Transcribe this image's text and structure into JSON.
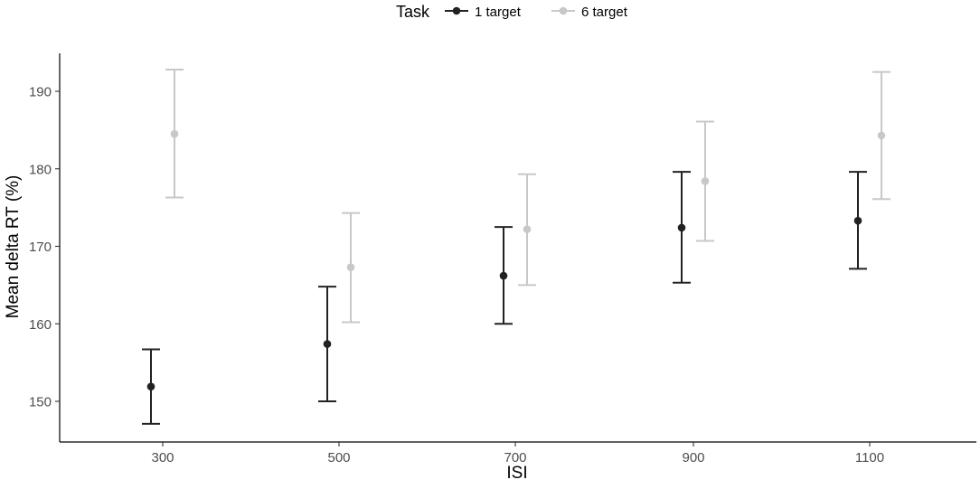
{
  "chart_data": {
    "type": "scatter",
    "subtype": "point-errorbar",
    "title": "",
    "xlabel": "ISI",
    "ylabel": "Mean delta RT (%)",
    "categories": [
      "300",
      "500",
      "700",
      "900",
      "1100"
    ],
    "y_ticks": [
      "150",
      "160",
      "170",
      "180",
      "190"
    ],
    "ylim": [
      144.5,
      195
    ],
    "grid": false,
    "legend": {
      "title": "Task",
      "position": "top-center"
    },
    "series": [
      {
        "name": "1 target",
        "color": "#222222",
        "values": [
          151.9,
          157.4,
          166.2,
          172.4,
          173.3
        ],
        "lower": [
          147.1,
          150.0,
          160.0,
          165.3,
          167.1
        ],
        "upper": [
          156.7,
          164.8,
          172.5,
          179.6,
          179.6
        ]
      },
      {
        "name": "6 target",
        "color": "#c8c8c8",
        "values": [
          184.5,
          167.3,
          172.2,
          178.4,
          184.3
        ],
        "lower": [
          176.3,
          160.2,
          165.0,
          170.7,
          176.1
        ],
        "upper": [
          192.8,
          174.3,
          179.3,
          186.1,
          192.5
        ]
      }
    ]
  }
}
